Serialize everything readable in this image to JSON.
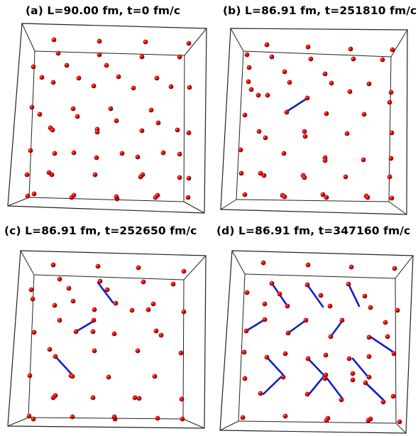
{
  "panels": [
    {
      "id": "a",
      "title": "(a) L=90.00 fm, t=0 fm/c"
    },
    {
      "id": "b",
      "title": "(b) L=86.91 fm, t=251810 fm/c"
    },
    {
      "id": "c",
      "title": "(c) L=86.91 fm, t=252650 fm/c"
    },
    {
      "id": "d",
      "title": "(d) L=86.91 fm, t=347160 fm/c"
    }
  ],
  "colors": {
    "particle": "#e00000",
    "bond": "#1020c8",
    "box": "#222222"
  }
}
